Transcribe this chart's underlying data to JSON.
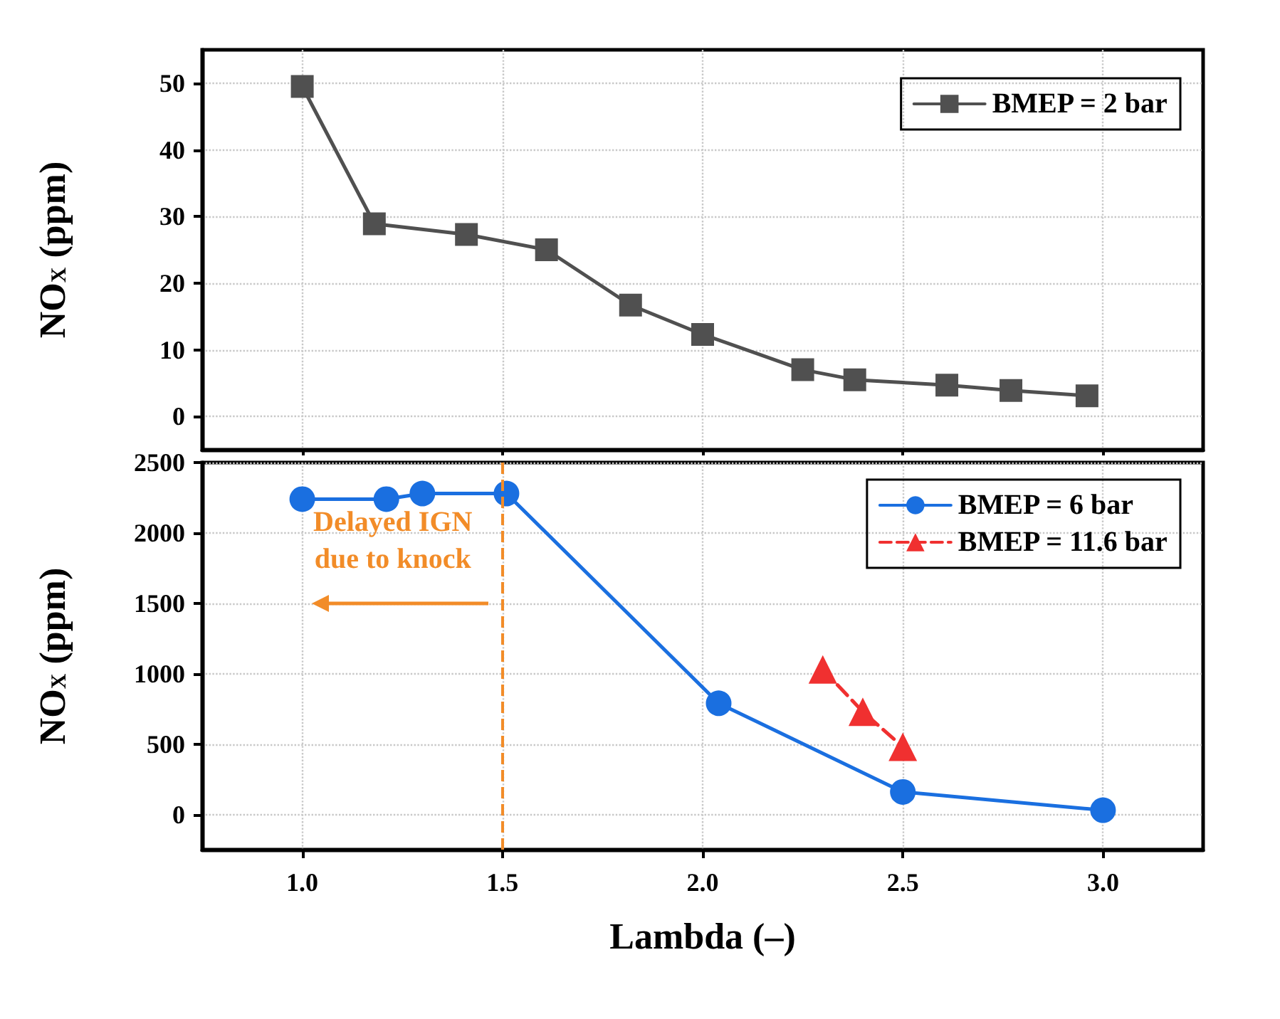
{
  "chart_data": [
    {
      "type": "line",
      "ylabel": "NO$_{X}$ (ppm)",
      "series": [
        {
          "name": "BMEP = 2 bar",
          "color": "#505050",
          "marker": "square",
          "line_style": "solid",
          "x": [
            1.0,
            1.18,
            1.41,
            1.61,
            1.82,
            2.0,
            2.25,
            2.38,
            2.61,
            2.77,
            2.96
          ],
          "values": [
            49.5,
            28.9,
            27.3,
            25,
            16.7,
            12.3,
            7.0,
            5.5,
            4.7,
            3.9,
            3.1
          ]
        }
      ],
      "xlim": [
        0.75,
        3.25
      ],
      "xticks": [
        1,
        1.5,
        2,
        2.5,
        3
      ],
      "ylim": [
        -5,
        55
      ],
      "yticks": [
        0,
        10,
        20,
        30,
        40,
        50
      ],
      "tick_labels": "y",
      "grid": true,
      "legend": "top right"
    },
    {
      "type": "line",
      "xlabel": "Lambda (–)",
      "ylabel": "NO$_{X}$ (ppm)",
      "series": [
        {
          "name": "BMEP = 6 bar",
          "color": "#1a6fe0",
          "marker": "circle",
          "line_style": "solid",
          "x": [
            1.0,
            1.21,
            1.3,
            1.51,
            2.04,
            2.5,
            3.0
          ],
          "values": [
            2240,
            2240,
            2280,
            2280,
            790,
            160,
            30
          ]
        },
        {
          "name": "BMEP = 11.6 bar",
          "color": "#f03030",
          "marker": "triangle",
          "line_style": "dashed",
          "x": [
            2.3,
            2.4,
            2.5
          ],
          "values": [
            1030,
            730,
            480
          ]
        }
      ],
      "xlim": [
        0.75,
        3.25
      ],
      "xticks": [
        {
          "value": 1,
          "label": "1.0"
        },
        {
          "value": 1.5,
          "label": "1.5"
        },
        {
          "value": 2,
          "label": "2.0"
        },
        {
          "value": 2.5,
          "label": "2.5"
        },
        {
          "value": 3,
          "label": "3.0"
        }
      ],
      "ylim": [
        -250,
        2500
      ],
      "yticks": [
        0,
        500,
        1000,
        1500,
        2000,
        2500
      ],
      "ref_lines": [
        {
          "axis": "x",
          "value": 1.5,
          "label": "Delayed IGN due to knock",
          "color": "#f28c28",
          "line_style": "dashed"
        }
      ],
      "grid": true,
      "legend": "top right"
    }
  ]
}
